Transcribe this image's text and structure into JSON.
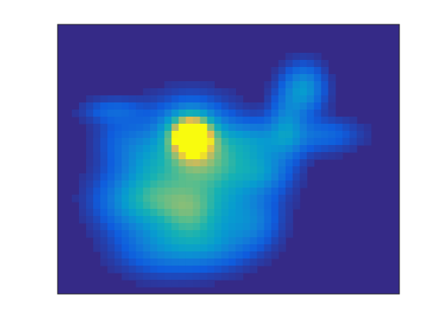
{
  "chart_data": {
    "type": "heatmap",
    "colormap": "parula",
    "background_color": "#352a87",
    "title": "",
    "xlabel": "",
    "ylabel": "",
    "grid": false,
    "legend": "none",
    "blobs": [
      {
        "cx": 0.39,
        "cy": 0.41,
        "rx": 0.045,
        "ry": 0.055,
        "value": 1.0
      },
      {
        "cx": 0.39,
        "cy": 0.41,
        "rx": 0.09,
        "ry": 0.09,
        "value": 0.35
      },
      {
        "cx": 0.72,
        "cy": 0.24,
        "rx": 0.04,
        "ry": 0.06,
        "value": 0.42
      },
      {
        "cx": 0.67,
        "cy": 0.37,
        "rx": 0.035,
        "ry": 0.08,
        "value": 0.3
      },
      {
        "cx": 0.57,
        "cy": 0.43,
        "rx": 0.09,
        "ry": 0.05,
        "value": 0.32
      },
      {
        "cx": 0.78,
        "cy": 0.41,
        "rx": 0.07,
        "ry": 0.04,
        "value": 0.2
      },
      {
        "cx": 0.44,
        "cy": 0.52,
        "rx": 0.11,
        "ry": 0.06,
        "value": 0.33
      },
      {
        "cx": 0.24,
        "cy": 0.66,
        "rx": 0.08,
        "ry": 0.07,
        "value": 0.36
      },
      {
        "cx": 0.39,
        "cy": 0.7,
        "rx": 0.07,
        "ry": 0.07,
        "value": 0.4
      },
      {
        "cx": 0.32,
        "cy": 0.61,
        "rx": 0.1,
        "ry": 0.08,
        "value": 0.3
      },
      {
        "cx": 0.5,
        "cy": 0.62,
        "rx": 0.09,
        "ry": 0.1,
        "value": 0.3
      },
      {
        "cx": 0.31,
        "cy": 0.82,
        "rx": 0.09,
        "ry": 0.07,
        "value": 0.3
      },
      {
        "cx": 0.45,
        "cy": 0.82,
        "rx": 0.08,
        "ry": 0.06,
        "value": 0.26
      },
      {
        "cx": 0.57,
        "cy": 0.74,
        "rx": 0.05,
        "ry": 0.06,
        "value": 0.2
      },
      {
        "cx": 0.16,
        "cy": 0.32,
        "rx": 0.06,
        "ry": 0.03,
        "value": 0.17
      },
      {
        "cx": 0.18,
        "cy": 0.43,
        "rx": 0.05,
        "ry": 0.07,
        "value": 0.14
      },
      {
        "cx": 0.26,
        "cy": 0.48,
        "rx": 0.05,
        "ry": 0.07,
        "value": 0.18
      },
      {
        "cx": 0.6,
        "cy": 0.55,
        "rx": 0.05,
        "ry": 0.05,
        "value": 0.22
      }
    ]
  }
}
